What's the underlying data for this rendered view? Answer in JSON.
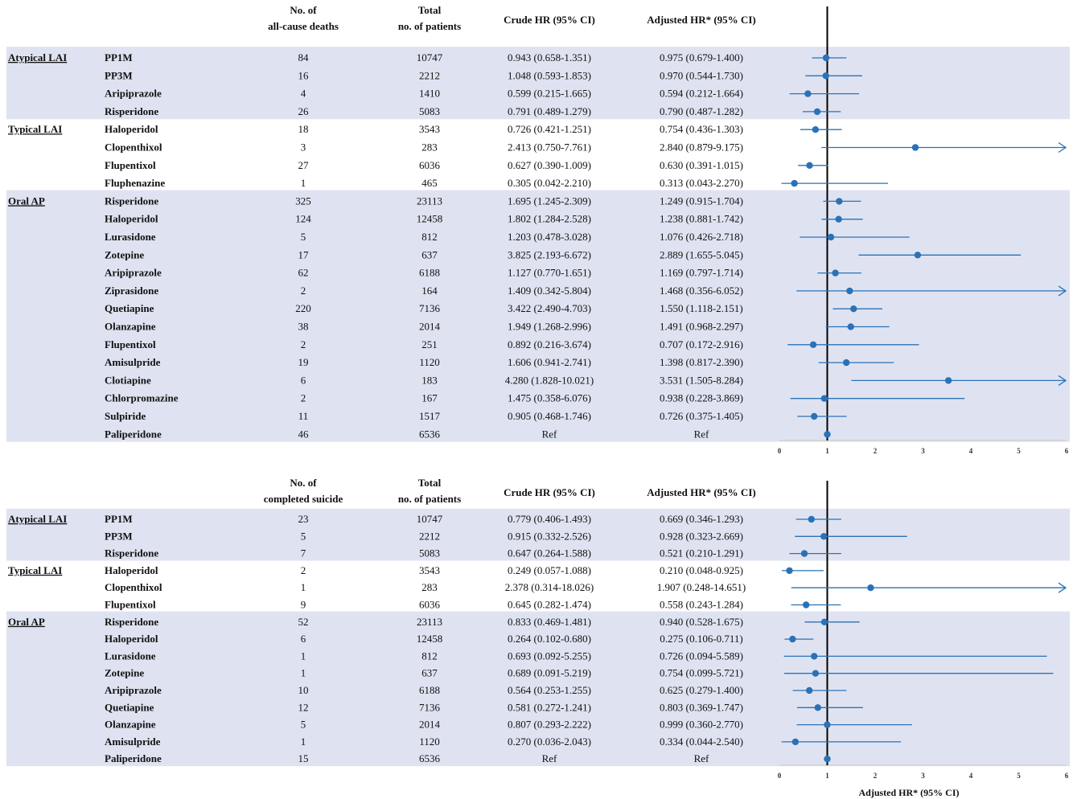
{
  "chart_data": [
    {
      "type": "forest",
      "outcome": "all-cause death",
      "headers": {
        "events": [
          "No. of",
          "all-cause deaths"
        ],
        "total": [
          "Total",
          "no. of patients"
        ],
        "crude": "Crude HR (95% CI)",
        "adjusted": "Adjusted HR* (95% CI)"
      },
      "x_ticks": [
        "0",
        "1",
        "2",
        "3",
        "4",
        "5",
        "6"
      ],
      "xlim": [
        0,
        6
      ],
      "reference_line": 1,
      "xlabel": "",
      "rows": [
        {
          "group": "Atypical LAI",
          "drug": "PP1M",
          "events": "84",
          "total": "10747",
          "crude": "0.943 (0.658-1.351)",
          "adjusted": "0.975 (0.679-1.400)",
          "hr": 0.975,
          "lo": 0.679,
          "hi": 1.4
        },
        {
          "group": "",
          "drug": "PP3M",
          "events": "16",
          "total": "2212",
          "crude": "1.048 (0.593-1.853)",
          "adjusted": "0.970 (0.544-1.730)",
          "hr": 0.97,
          "lo": 0.544,
          "hi": 1.73
        },
        {
          "group": "",
          "drug": "Aripiprazole",
          "events": "4",
          "total": "1410",
          "crude": "0.599 (0.215-1.665)",
          "adjusted": "0.594 (0.212-1.664)",
          "hr": 0.594,
          "lo": 0.212,
          "hi": 1.664
        },
        {
          "group": "",
          "drug": "Risperidone",
          "events": "26",
          "total": "5083",
          "crude": "0.791 (0.489-1.279)",
          "adjusted": "0.790 (0.487-1.282)",
          "hr": 0.79,
          "lo": 0.487,
          "hi": 1.282
        },
        {
          "group": "Typical LAI",
          "drug": "Haloperidol",
          "events": "18",
          "total": "3543",
          "crude": "0.726 (0.421-1.251)",
          "adjusted": "0.754 (0.436-1.303)",
          "hr": 0.754,
          "lo": 0.436,
          "hi": 1.303
        },
        {
          "group": "",
          "drug": "Clopenthixol",
          "events": "3",
          "total": "283",
          "crude": "2.413 (0.750-7.761)",
          "adjusted": "2.840 (0.879-9.175)",
          "hr": 2.84,
          "lo": 0.879,
          "hi": 9.175
        },
        {
          "group": "",
          "drug": "Flupentixol",
          "events": "27",
          "total": "6036",
          "crude": "0.627 (0.390-1.009)",
          "adjusted": "0.630 (0.391-1.015)",
          "hr": 0.63,
          "lo": 0.391,
          "hi": 1.015
        },
        {
          "group": "",
          "drug": "Fluphenazine",
          "events": "1",
          "total": "465",
          "crude": "0.305 (0.042-2.210)",
          "adjusted": "0.313 (0.043-2.270)",
          "hr": 0.313,
          "lo": 0.043,
          "hi": 2.27
        },
        {
          "group": "Oral AP",
          "drug": "Risperidone",
          "events": "325",
          "total": "23113",
          "crude": "1.695 (1.245-2.309)",
          "adjusted": "1.249 (0.915-1.704)",
          "hr": 1.249,
          "lo": 0.915,
          "hi": 1.704
        },
        {
          "group": "",
          "drug": "Haloperidol",
          "events": "124",
          "total": "12458",
          "crude": "1.802 (1.284-2.528)",
          "adjusted": "1.238 (0.881-1.742)",
          "hr": 1.238,
          "lo": 0.881,
          "hi": 1.742
        },
        {
          "group": "",
          "drug": "Lurasidone",
          "events": "5",
          "total": "812",
          "crude": "1.203 (0.478-3.028)",
          "adjusted": "1.076 (0.426-2.718)",
          "hr": 1.076,
          "lo": 0.426,
          "hi": 2.718
        },
        {
          "group": "",
          "drug": "Zotepine",
          "events": "17",
          "total": "637",
          "crude": "3.825 (2.193-6.672)",
          "adjusted": "2.889 (1.655-5.045)",
          "hr": 2.889,
          "lo": 1.655,
          "hi": 5.045
        },
        {
          "group": "",
          "drug": "Aripiprazole",
          "events": "62",
          "total": "6188",
          "crude": "1.127 (0.770-1.651)",
          "adjusted": "1.169 (0.797-1.714)",
          "hr": 1.169,
          "lo": 0.797,
          "hi": 1.714
        },
        {
          "group": "",
          "drug": "Ziprasidone",
          "events": "2",
          "total": "164",
          "crude": "1.409 (0.342-5.804)",
          "adjusted": "1.468 (0.356-6.052)",
          "hr": 1.468,
          "lo": 0.356,
          "hi": 6.052
        },
        {
          "group": "",
          "drug": "Quetiapine",
          "events": "220",
          "total": "7136",
          "crude": "3.422 (2.490-4.703)",
          "adjusted": "1.550 (1.118-2.151)",
          "hr": 1.55,
          "lo": 1.118,
          "hi": 2.151
        },
        {
          "group": "",
          "drug": "Olanzapine",
          "events": "38",
          "total": "2014",
          "crude": "1.949 (1.268-2.996)",
          "adjusted": "1.491 (0.968-2.297)",
          "hr": 1.491,
          "lo": 0.968,
          "hi": 2.297
        },
        {
          "group": "",
          "drug": "Flupentixol",
          "events": "2",
          "total": "251",
          "crude": "0.892 (0.216-3.674)",
          "adjusted": "0.707 (0.172-2.916)",
          "hr": 0.707,
          "lo": 0.172,
          "hi": 2.916
        },
        {
          "group": "",
          "drug": "Amisulpride",
          "events": "19",
          "total": "1120",
          "crude": "1.606 (0.941-2.741)",
          "adjusted": "1.398 (0.817-2.390)",
          "hr": 1.398,
          "lo": 0.817,
          "hi": 2.39
        },
        {
          "group": "",
          "drug": "Clotiapine",
          "events": "6",
          "total": "183",
          "crude": "4.280 (1.828-10.021)",
          "adjusted": "3.531 (1.505-8.284)",
          "hr": 3.531,
          "lo": 1.505,
          "hi": 8.284
        },
        {
          "group": "",
          "drug": "Chlorpromazine",
          "events": "2",
          "total": "167",
          "crude": "1.475 (0.358-6.076)",
          "adjusted": "0.938 (0.228-3.869)",
          "hr": 0.938,
          "lo": 0.228,
          "hi": 3.869
        },
        {
          "group": "",
          "drug": "Sulpiride",
          "events": "11",
          "total": "1517",
          "crude": "0.905 (0.468-1.746)",
          "adjusted": "0.726 (0.375-1.405)",
          "hr": 0.726,
          "lo": 0.375,
          "hi": 1.405
        },
        {
          "group": "",
          "drug": "Paliperidone",
          "events": "46",
          "total": "6536",
          "crude": "Ref",
          "adjusted": "Ref",
          "hr": 1.0,
          "lo": 1.0,
          "hi": 1.0
        }
      ]
    },
    {
      "type": "forest",
      "outcome": "completed suicide",
      "headers": {
        "events": [
          "No. of",
          "completed suicide"
        ],
        "total": [
          "Total",
          "no. of patients"
        ],
        "crude": "Crude HR (95% CI)",
        "adjusted": "Adjusted HR* (95% CI)"
      },
      "x_ticks": [
        "0",
        "1",
        "2",
        "3",
        "4",
        "5",
        "6"
      ],
      "xlim": [
        0,
        6
      ],
      "reference_line": 1,
      "xlabel": "Adjusted HR* (95% CI)",
      "rows": [
        {
          "group": "Atypical LAI",
          "drug": "PP1M",
          "events": "23",
          "total": "10747",
          "crude": "0.779 (0.406-1.493)",
          "adjusted": "0.669 (0.346-1.293)",
          "hr": 0.669,
          "lo": 0.346,
          "hi": 1.293
        },
        {
          "group": "",
          "drug": "PP3M",
          "events": "5",
          "total": "2212",
          "crude": "0.915 (0.332-2.526)",
          "adjusted": "0.928 (0.323-2.669)",
          "hr": 0.928,
          "lo": 0.323,
          "hi": 2.669
        },
        {
          "group": "",
          "drug": "Risperidone",
          "events": "7",
          "total": "5083",
          "crude": "0.647 (0.264-1.588)",
          "adjusted": "0.521 (0.210-1.291)",
          "hr": 0.521,
          "lo": 0.21,
          "hi": 1.291
        },
        {
          "group": "Typical LAI",
          "drug": "Haloperidol",
          "events": "2",
          "total": "3543",
          "crude": "0.249 (0.057-1.088)",
          "adjusted": "0.210 (0.048-0.925)",
          "hr": 0.21,
          "lo": 0.048,
          "hi": 0.925
        },
        {
          "group": "",
          "drug": "Clopenthixol",
          "events": "1",
          "total": "283",
          "crude": "2.378 (0.314-18.026)",
          "adjusted": "1.907 (0.248-14.651)",
          "hr": 1.907,
          "lo": 0.248,
          "hi": 14.651
        },
        {
          "group": "",
          "drug": "Flupentixol",
          "events": "9",
          "total": "6036",
          "crude": "0.645 (0.282-1.474)",
          "adjusted": "0.558 (0.243-1.284)",
          "hr": 0.558,
          "lo": 0.243,
          "hi": 1.284
        },
        {
          "group": "Oral AP",
          "drug": "Risperidone",
          "events": "52",
          "total": "23113",
          "crude": "0.833 (0.469-1.481)",
          "adjusted": "0.940 (0.528-1.675)",
          "hr": 0.94,
          "lo": 0.528,
          "hi": 1.675
        },
        {
          "group": "",
          "drug": "Haloperidol",
          "events": "6",
          "total": "12458",
          "crude": "0.264 (0.102-0.680)",
          "adjusted": "0.275 (0.106-0.711)",
          "hr": 0.275,
          "lo": 0.106,
          "hi": 0.711
        },
        {
          "group": "",
          "drug": "Lurasidone",
          "events": "1",
          "total": "812",
          "crude": "0.693 (0.092-5.255)",
          "adjusted": "0.726 (0.094-5.589)",
          "hr": 0.726,
          "lo": 0.094,
          "hi": 5.589
        },
        {
          "group": "",
          "drug": "Zotepine",
          "events": "1",
          "total": "637",
          "crude": "0.689 (0.091-5.219)",
          "adjusted": "0.754 (0.099-5.721)",
          "hr": 0.754,
          "lo": 0.099,
          "hi": 5.721
        },
        {
          "group": "",
          "drug": "Aripiprazole",
          "events": "10",
          "total": "6188",
          "crude": "0.564 (0.253-1.255)",
          "adjusted": "0.625 (0.279-1.400)",
          "hr": 0.625,
          "lo": 0.279,
          "hi": 1.4
        },
        {
          "group": "",
          "drug": "Quetiapine",
          "events": "12",
          "total": "7136",
          "crude": "0.581 (0.272-1.241)",
          "adjusted": "0.803 (0.369-1.747)",
          "hr": 0.803,
          "lo": 0.369,
          "hi": 1.747
        },
        {
          "group": "",
          "drug": "Olanzapine",
          "events": "5",
          "total": "2014",
          "crude": "0.807 (0.293-2.222)",
          "adjusted": "0.999 (0.360-2.770)",
          "hr": 0.999,
          "lo": 0.36,
          "hi": 2.77
        },
        {
          "group": "",
          "drug": "Amisulpride",
          "events": "1",
          "total": "1120",
          "crude": "0.270 (0.036-2.043)",
          "adjusted": "0.334 (0.044-2.540)",
          "hr": 0.334,
          "lo": 0.044,
          "hi": 2.54
        },
        {
          "group": "",
          "drug": "Paliperidone",
          "events": "15",
          "total": "6536",
          "crude": "Ref",
          "adjusted": "Ref",
          "hr": 1.0,
          "lo": 1.0,
          "hi": 1.0
        }
      ]
    }
  ],
  "colors": {
    "band": "#dfe3f1",
    "marker": "#2a72b8",
    "ref_line": "#000000",
    "axis": "#c8c8c8"
  }
}
